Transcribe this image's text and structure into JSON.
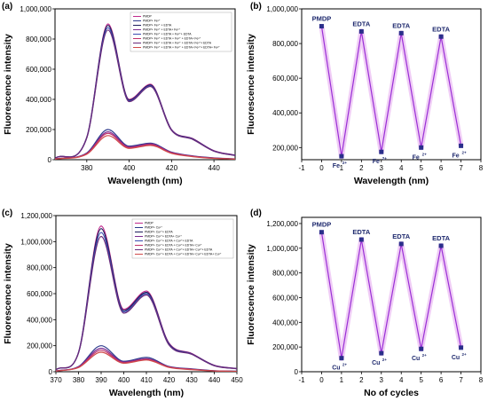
{
  "panels": [
    {
      "label": "(a)",
      "chart_data": {
        "type": "line",
        "xlabel": "Wavelength (nm)",
        "ylabel": "Fluorescence intensity",
        "xlim": [
          365,
          450
        ],
        "ylim": [
          0,
          1000000
        ],
        "xticks": [
          380,
          400,
          420,
          440
        ],
        "yticks": [
          0,
          200000,
          400000,
          600000,
          800000,
          1000000
        ],
        "ytick_labels": [
          "0",
          "200,000",
          "400,000",
          "600,000",
          "800,000",
          "1,000,000"
        ],
        "legend_position": "top-right",
        "series": [
          {
            "name": "PMDP",
            "color": "#c02a8c",
            "values": [
              [
                365,
                10000
              ],
              [
                380,
                150000
              ],
              [
                390,
                900000
              ],
              [
                400,
                400000
              ],
              [
                410,
                500000
              ],
              [
                420,
                200000
              ],
              [
                430,
                140000
              ],
              [
                440,
                60000
              ],
              [
                450,
                30000
              ]
            ]
          },
          {
            "name": "PMDP+ Fe²⁺",
            "color": "#2d3a8c",
            "values": [
              [
                365,
                5000
              ],
              [
                380,
                45000
              ],
              [
                390,
                200000
              ],
              [
                400,
                90000
              ],
              [
                410,
                110000
              ],
              [
                420,
                50000
              ],
              [
                430,
                25000
              ],
              [
                440,
                12000
              ],
              [
                450,
                6000
              ]
            ]
          },
          {
            "name": "PMDP+ Fe²⁺ + EDTA",
            "color": "#1c1c5a",
            "values": [
              [
                365,
                10000
              ],
              [
                380,
                148000
              ],
              [
                390,
                890000
              ],
              [
                400,
                395000
              ],
              [
                410,
                495000
              ],
              [
                420,
                198000
              ],
              [
                430,
                138000
              ],
              [
                440,
                58000
              ],
              [
                450,
                29000
              ]
            ]
          },
          {
            "name": "PMDP+ Fe²⁺ + EDTA+ Fe²⁺",
            "color": "#7a2a90",
            "values": [
              [
                365,
                5000
              ],
              [
                380,
                42000
              ],
              [
                390,
                185000
              ],
              [
                400,
                85000
              ],
              [
                410,
                105000
              ],
              [
                420,
                48000
              ],
              [
                430,
                24000
              ],
              [
                440,
                11000
              ],
              [
                450,
                5500
              ]
            ]
          },
          {
            "name": "PMDP+ Fe²⁺ + EDTA + Fe²⁺+ EDTA",
            "color": "#3a4cb0",
            "values": [
              [
                365,
                10000
              ],
              [
                380,
                146000
              ],
              [
                390,
                875000
              ],
              [
                400,
                390000
              ],
              [
                410,
                490000
              ],
              [
                420,
                196000
              ],
              [
                430,
                136000
              ],
              [
                440,
                57000
              ],
              [
                450,
                28000
              ]
            ]
          },
          {
            "name": "PMDP+ Fe²⁺ + EDTA + Fe²⁺ + EDTA+ Fe²⁺",
            "color": "#c0306a",
            "values": [
              [
                365,
                5000
              ],
              [
                380,
                40000
              ],
              [
                390,
                175000
              ],
              [
                400,
                80000
              ],
              [
                410,
                100000
              ],
              [
                420,
                45000
              ],
              [
                430,
                22000
              ],
              [
                440,
                10000
              ],
              [
                450,
                5000
              ]
            ]
          },
          {
            "name": "PMDP+ Fe²⁺ + EDTA + Fe²⁺ + EDTA+ Fe²⁺+ EDTA",
            "color": "#6a2a7a",
            "values": [
              [
                365,
                10000
              ],
              [
                380,
                144000
              ],
              [
                390,
                860000
              ],
              [
                400,
                385000
              ],
              [
                410,
                485000
              ],
              [
                420,
                194000
              ],
              [
                430,
                134000
              ],
              [
                440,
                56000
              ],
              [
                450,
                27000
              ]
            ]
          },
          {
            "name": "PMDP+ Fe²⁺ + EDTA + Fe²⁺ + EDTA+ Fe²⁺+ EDTA+ Fe²⁺",
            "color": "#d04a4a",
            "values": [
              [
                365,
                4000
              ],
              [
                380,
                36000
              ],
              [
                390,
                160000
              ],
              [
                400,
                75000
              ],
              [
                410,
                95000
              ],
              [
                420,
                42000
              ],
              [
                430,
                20000
              ],
              [
                440,
                9000
              ],
              [
                450,
                4500
              ]
            ]
          }
        ]
      }
    },
    {
      "label": "(b)",
      "chart_data": {
        "type": "line",
        "xlabel": "Wavelength (nm)",
        "ylabel": "Fluorescence intensity",
        "xlim": [
          -1,
          8
        ],
        "ylim": [
          130000,
          1000000
        ],
        "xticks": [
          -1,
          0,
          1,
          2,
          3,
          4,
          5,
          6,
          7,
          8
        ],
        "yticks": [
          200000,
          400000,
          600000,
          800000,
          1000000
        ],
        "ytick_labels": [
          "200,000",
          "400,000",
          "600,000",
          "800,000",
          "1,000,000"
        ],
        "series": [
          {
            "color": "#9a2fd6",
            "x": [
              0,
              1,
              2,
              3,
              4,
              5,
              6,
              7
            ],
            "y": [
              900000,
              150000,
              870000,
              175000,
              860000,
              200000,
              840000,
              210000
            ]
          }
        ],
        "annotations": [
          {
            "x": 0,
            "text": "PMDP"
          },
          {
            "x": 1,
            "text": "Fe",
            "ion": "2+"
          },
          {
            "x": 2,
            "text": "EDTA"
          },
          {
            "x": 3,
            "text": "Fe",
            "ion": "2+"
          },
          {
            "x": 4,
            "text": "EDTA"
          },
          {
            "x": 5,
            "text": "Fe",
            "ion": "2+"
          },
          {
            "x": 6,
            "text": "EDTA"
          },
          {
            "x": 7,
            "text": "Fe",
            "ion": "2+"
          }
        ]
      }
    },
    {
      "label": "(c)",
      "chart_data": {
        "type": "line",
        "xlabel": "Wavelength (nm)",
        "ylabel": "Fluorescence intensity",
        "xlim": [
          370,
          450
        ],
        "ylim": [
          0,
          1200000
        ],
        "xticks": [
          370,
          380,
          390,
          400,
          410,
          420,
          430,
          440,
          450
        ],
        "yticks": [
          0,
          200000,
          400000,
          600000,
          800000,
          1000000,
          1200000
        ],
        "ytick_labels": [
          "0",
          "200,000",
          "400,000",
          "600,000",
          "800,000",
          "1,000,000",
          "1,200,000"
        ],
        "legend_position": "top-right",
        "series": [
          {
            "name": "PMDP",
            "color": "#c02a8c",
            "values": [
              [
                370,
                15000
              ],
              [
                380,
                150000
              ],
              [
                390,
                1120000
              ],
              [
                400,
                480000
              ],
              [
                410,
                620000
              ],
              [
                420,
                220000
              ],
              [
                430,
                140000
              ],
              [
                440,
                50000
              ],
              [
                450,
                25000
              ]
            ]
          },
          {
            "name": "PMDP+ Cu²⁺",
            "color": "#2d3a8c",
            "values": [
              [
                370,
                6000
              ],
              [
                380,
                40000
              ],
              [
                390,
                200000
              ],
              [
                400,
                80000
              ],
              [
                410,
                110000
              ],
              [
                420,
                40000
              ],
              [
                430,
                22000
              ],
              [
                440,
                8000
              ],
              [
                450,
                4000
              ]
            ]
          },
          {
            "name": "PMDP+ Cu²⁺+ EDTA",
            "color": "#1c1c5a",
            "values": [
              [
                370,
                15000
              ],
              [
                380,
                148000
              ],
              [
                390,
                1100000
              ],
              [
                400,
                470000
              ],
              [
                410,
                610000
              ],
              [
                420,
                215000
              ],
              [
                430,
                138000
              ],
              [
                440,
                48000
              ],
              [
                450,
                24000
              ]
            ]
          },
          {
            "name": "PMDP+ Cu²⁺+ EDTA+ Cu²⁺",
            "color": "#7a2a90",
            "values": [
              [
                370,
                6000
              ],
              [
                380,
                38000
              ],
              [
                390,
                180000
              ],
              [
                400,
                75000
              ],
              [
                410,
                100000
              ],
              [
                420,
                38000
              ],
              [
                430,
                20000
              ],
              [
                440,
                7000
              ],
              [
                450,
                3500
              ]
            ]
          },
          {
            "name": "PMDP+ Cu²⁺+ EDTA + Cu²⁺+ EDTA",
            "color": "#3a4cb0",
            "values": [
              [
                370,
                15000
              ],
              [
                380,
                146000
              ],
              [
                390,
                1070000
              ],
              [
                400,
                460000
              ],
              [
                410,
                600000
              ],
              [
                420,
                210000
              ],
              [
                430,
                136000
              ],
              [
                440,
                47000
              ],
              [
                450,
                23000
              ]
            ]
          },
          {
            "name": "PMDP+ Cu²⁺+ EDTA + Cu²⁺+ EDTA+ Cu²⁺",
            "color": "#c0306a",
            "values": [
              [
                370,
                5000
              ],
              [
                380,
                35000
              ],
              [
                390,
                165000
              ],
              [
                400,
                70000
              ],
              [
                410,
                95000
              ],
              [
                420,
                36000
              ],
              [
                430,
                18000
              ],
              [
                440,
                6500
              ],
              [
                450,
                3000
              ]
            ]
          },
          {
            "name": "PMDP+ Cu²⁺+ EDTA + Cu²⁺+ EDTA+ Cu²⁺+ EDTA",
            "color": "#6a2a7a",
            "values": [
              [
                370,
                15000
              ],
              [
                380,
                144000
              ],
              [
                390,
                1040000
              ],
              [
                400,
                450000
              ],
              [
                410,
                590000
              ],
              [
                420,
                205000
              ],
              [
                430,
                134000
              ],
              [
                440,
                46000
              ],
              [
                450,
                22000
              ]
            ]
          },
          {
            "name": "PMDP+ Cu²⁺+ EDTA + Cu²⁺+ EDTA+ Cu²⁺+ EDTA+ Cu²⁺",
            "color": "#d04a4a",
            "values": [
              [
                370,
                5000
              ],
              [
                380,
                32000
              ],
              [
                390,
                150000
              ],
              [
                400,
                65000
              ],
              [
                410,
                90000
              ],
              [
                420,
                33000
              ],
              [
                430,
                16000
              ],
              [
                440,
                6000
              ],
              [
                450,
                3000
              ]
            ]
          }
        ]
      }
    },
    {
      "label": "(d)",
      "chart_data": {
        "type": "line",
        "xlabel": "No of cycles",
        "ylabel": "Fluorescence intensity",
        "xlim": [
          -1,
          8
        ],
        "ylim": [
          0,
          1250000
        ],
        "xticks": [
          -1,
          0,
          1,
          2,
          3,
          4,
          5,
          6,
          7,
          8
        ],
        "yticks": [
          0,
          200000,
          400000,
          600000,
          800000,
          1000000,
          1200000
        ],
        "ytick_labels": [
          "0",
          "200,000",
          "400,000",
          "600,000",
          "800,000",
          "1,000,000",
          "1,200,000"
        ],
        "series": [
          {
            "color": "#9a2fd6",
            "x": [
              0,
              1,
              2,
              3,
              4,
              5,
              6,
              7
            ],
            "y": [
              1130000,
              110000,
              1070000,
              150000,
              1035000,
              185000,
              1020000,
              195000
            ]
          }
        ],
        "annotations": [
          {
            "x": 0,
            "text": "PMDP"
          },
          {
            "x": 1,
            "text": "Cu",
            "ion": "2+"
          },
          {
            "x": 2,
            "text": "EDTA"
          },
          {
            "x": 3,
            "text": "Cu",
            "ion": "2+"
          },
          {
            "x": 4,
            "text": "EDTA"
          },
          {
            "x": 5,
            "text": "Cu",
            "ion": "2+"
          },
          {
            "x": 6,
            "text": "EDTA"
          },
          {
            "x": 7,
            "text": "Cu",
            "ion": "2+"
          }
        ]
      }
    }
  ]
}
